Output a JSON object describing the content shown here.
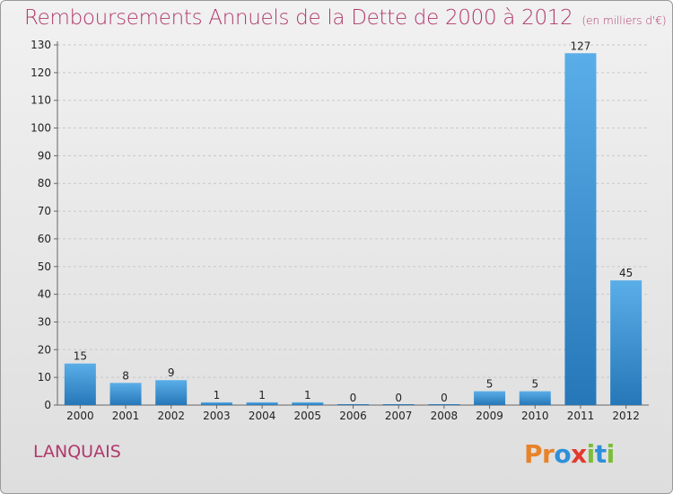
{
  "header": {
    "title": "Remboursements Annuels de la Dette de 2000 à 2012",
    "unit": "(en milliers d'€)"
  },
  "footer": {
    "place": "LANQUAIS",
    "logo": "Proxiti",
    "logo_letters": [
      "P",
      "r",
      "o",
      "x",
      "i",
      "t",
      "i"
    ]
  },
  "colors": {
    "title": "#b0396b",
    "bar_light": "#5aaee8",
    "bar_dark": "#2677b8",
    "grid": "#c8c8c8"
  },
  "chart_data": {
    "type": "bar",
    "title": "Remboursements Annuels de la Dette de 2000 à 2012",
    "subtitle": "(en milliers d'€)",
    "xlabel": "",
    "ylabel": "",
    "categories": [
      "2000",
      "2001",
      "2002",
      "2003",
      "2004",
      "2005",
      "2006",
      "2007",
      "2008",
      "2009",
      "2010",
      "2011",
      "2012"
    ],
    "values": [
      15,
      8,
      9,
      1,
      1,
      1,
      0,
      0,
      0,
      5,
      5,
      127,
      45
    ],
    "ylim": [
      0,
      130
    ],
    "yticks": [
      0,
      10,
      20,
      30,
      40,
      50,
      60,
      70,
      80,
      90,
      100,
      110,
      120,
      130
    ],
    "grid": true
  }
}
